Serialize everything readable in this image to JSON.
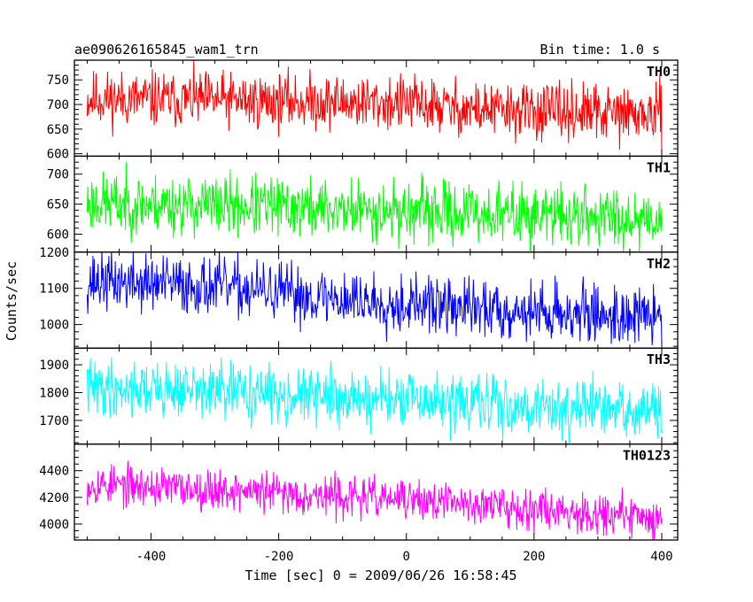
{
  "chart_data": {
    "type": "line",
    "title_left": "ae090626165845_wam1_trn",
    "title_right": "Bin time: 1.0 s",
    "xlabel": "Time [sec] 0 = 2009/06/26 16:58:45",
    "ylabel": "Counts/sec",
    "xlim": [
      -520,
      425
    ],
    "x_range": [
      -500,
      400
    ],
    "bin_time": 1.0,
    "x_ticks": [
      -400,
      -200,
      0,
      200,
      400
    ],
    "panels": [
      {
        "name": "TH0",
        "color": "#ff0000",
        "ylim": [
          595,
          790
        ],
        "yticks": [
          600,
          650,
          700,
          750
        ],
        "trend": [
          [
            -500,
            712
          ],
          [
            -100,
            705
          ],
          [
            0,
            702
          ],
          [
            100,
            690
          ],
          [
            400,
            678
          ]
        ],
        "noise": 28,
        "seed": 11
      },
      {
        "name": "TH1",
        "color": "#00ff00",
        "ylim": [
          570,
          730
        ],
        "yticks": [
          600,
          650,
          700
        ],
        "trend": [
          [
            -500,
            652
          ],
          [
            -200,
            645
          ],
          [
            0,
            638
          ],
          [
            200,
            632
          ],
          [
            400,
            627
          ]
        ],
        "noise": 25,
        "seed": 23
      },
      {
        "name": "TH2",
        "color": "#0000ff",
        "ylim": [
          935,
          1200
        ],
        "yticks": [
          1000,
          1100,
          1200
        ],
        "trend": [
          [
            -500,
            1120
          ],
          [
            -300,
            1105
          ],
          [
            -100,
            1070
          ],
          [
            100,
            1045
          ],
          [
            400,
            1020
          ]
        ],
        "noise": 40,
        "seed": 37
      },
      {
        "name": "TH3",
        "color": "#00ffff",
        "ylim": [
          1615,
          1960
        ],
        "yticks": [
          1700,
          1800,
          1900
        ],
        "trend": [
          [
            -500,
            1820
          ],
          [
            -300,
            1805
          ],
          [
            0,
            1770
          ],
          [
            200,
            1750
          ],
          [
            400,
            1730
          ]
        ],
        "noise": 50,
        "seed": 41
      },
      {
        "name": "TH0123",
        "color": "#ff00ff",
        "ylim": [
          3880,
          4600
        ],
        "yticks": [
          4000,
          4200,
          4400
        ],
        "trend": [
          [
            -500,
            4300
          ],
          [
            -300,
            4260
          ],
          [
            0,
            4180
          ],
          [
            200,
            4120
          ],
          [
            400,
            4040
          ]
        ],
        "noise": 75,
        "seed": 53
      }
    ]
  }
}
